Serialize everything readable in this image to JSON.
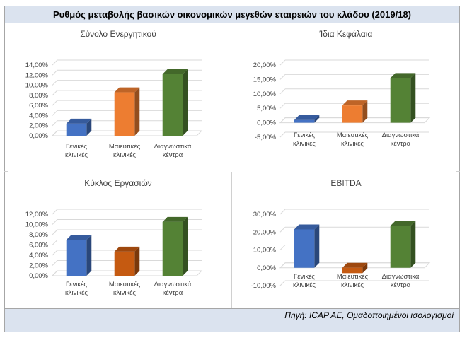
{
  "header": {
    "title": "Ρυθμός μεταβολής βασικών οικονομικών μεγεθών εταιρειών του κλάδου (2019/18)"
  },
  "footer": {
    "source": "Πηγή: ICAP AE, Ομαδοποιημένοι ισολογισμοί"
  },
  "colors": {
    "blue": "#4472c4",
    "orange_light": "#ed7d31",
    "orange_dark": "#c55a11",
    "green": "#548235"
  },
  "chart_data": [
    {
      "type": "bar",
      "title": "Σύνολο Ενεργητικού",
      "categories": [
        [
          "Γενικές",
          "κλινικές"
        ],
        [
          "Μαιευτικές",
          "κλινικές"
        ],
        [
          "Διαγνωστικά",
          "κέντρα"
        ]
      ],
      "values": [
        2.4,
        8.6,
        12.2
      ],
      "colors": [
        "#4472c4",
        "#ed7d31",
        "#548235"
      ],
      "yticks": [
        "0,00%",
        "2,00%",
        "4,00%",
        "6,00%",
        "8,00%",
        "10,00%",
        "12,00%",
        "14,00%"
      ],
      "ylim": [
        0,
        14
      ],
      "grid": true
    },
    {
      "type": "bar",
      "title": "Ίδια Κεφάλαια",
      "categories": [
        [
          "Γενικές",
          "κλινικές"
        ],
        [
          "Μαιευτικές",
          "κλινικές"
        ],
        [
          "Διαγνωστικά",
          "κέντρα"
        ]
      ],
      "values": [
        0.9,
        6.0,
        15.5
      ],
      "colors": [
        "#4472c4",
        "#ed7d31",
        "#548235"
      ],
      "yticks": [
        "-5,00%",
        "0,00%",
        "5,00%",
        "10,00%",
        "15,00%",
        "20,00%"
      ],
      "ylim": [
        -5,
        20
      ],
      "grid": true
    },
    {
      "type": "bar",
      "title": "Κύκλος Εργασιών",
      "categories": [
        [
          "Γενικές",
          "κλινικές"
        ],
        [
          "Μαιευτικές",
          "κλινικές"
        ],
        [
          "Διαγνωστικά",
          "κέντρα"
        ]
      ],
      "values": [
        7.0,
        4.7,
        10.5
      ],
      "colors": [
        "#4472c4",
        "#c55a11",
        "#548235"
      ],
      "yticks": [
        "0,00%",
        "2,00%",
        "4,00%",
        "6,00%",
        "8,00%",
        "10,00%",
        "12,00%"
      ],
      "ylim": [
        0,
        12
      ],
      "grid": true
    },
    {
      "type": "bar",
      "title": "EBITDA",
      "categories": [
        [
          "Γενικές",
          "κλινικές"
        ],
        [
          "Μαιευτικές",
          "κλινικές"
        ],
        [
          "Διαγνωστικά",
          "κέντρα"
        ]
      ],
      "values": [
        21.5,
        -3.0,
        23.5
      ],
      "colors": [
        "#4472c4",
        "#c55a11",
        "#548235"
      ],
      "yticks": [
        "-10,00%",
        "0,00%",
        "10,00%",
        "20,00%",
        "30,00%"
      ],
      "ylim": [
        -10,
        30
      ],
      "grid": true
    }
  ]
}
